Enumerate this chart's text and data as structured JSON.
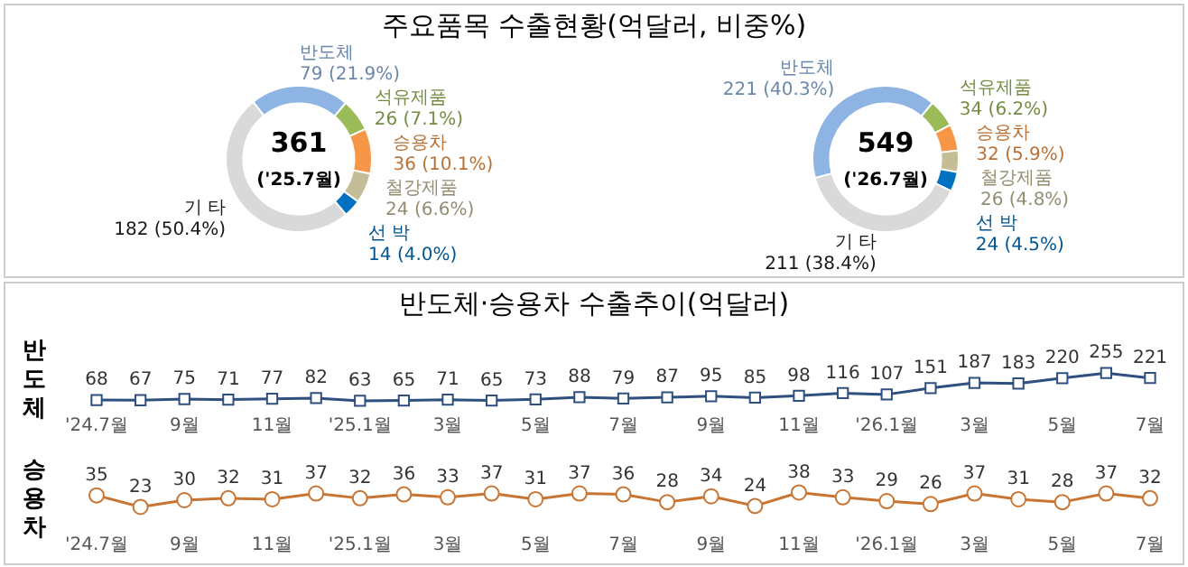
{
  "chart_data": [
    {
      "type": "donut",
      "title": "주요품목  수출현황(억달러, 비중%)",
      "categories": [
        "반도체",
        "석유제품",
        "승용차",
        "철강제품",
        "선 박",
        "기 타"
      ],
      "values": [
        79,
        26,
        36,
        24,
        14,
        182
      ],
      "colors": [
        "#8db4e2",
        "#9bbb59",
        "#f79646",
        "#c4bd97",
        "#0070c0",
        "#d9d9d9"
      ],
      "value_labels": [
        "79 (21.9%)",
        "26 (7.1%)",
        "36 (10.1%)",
        "24 (6.6%)",
        "14 (4.0%)",
        "182 (50.4%)"
      ],
      "annotations": [
        "361",
        "('25.7월)"
      ]
    },
    {
      "type": "donut",
      "categories": [
        "반도체",
        "석유제품",
        "승용차",
        "철강제품",
        "선 박",
        "기 타"
      ],
      "values": [
        221,
        34,
        32,
        26,
        24,
        211
      ],
      "colors": [
        "#8db4e2",
        "#9bbb59",
        "#f79646",
        "#c4bd97",
        "#0070c0",
        "#d9d9d9"
      ],
      "value_labels": [
        "221 (40.3%)",
        "34 (6.2%)",
        "32 (5.9%)",
        "26 (4.8%)",
        "24 (4.5%)",
        "211 (38.4%)"
      ],
      "annotations": [
        "549",
        "('26.7월)"
      ]
    },
    {
      "type": "line",
      "title": "반도체·승용차 수출추이(억달러)",
      "ylabel": "반도체",
      "categories": [
        "'24.7월",
        null,
        "9월",
        null,
        "11월",
        null,
        "'25.1월",
        null,
        "3월",
        null,
        "5월",
        null,
        "7월",
        null,
        "9월",
        null,
        "11월",
        null,
        "'26.1월",
        null,
        "3월",
        null,
        "5월",
        null,
        "7월"
      ],
      "series": [
        {
          "color": "#2f4f7f",
          "values": [
            68,
            67,
            75,
            71,
            77,
            82,
            63,
            65,
            71,
            65,
            73,
            88,
            79,
            87,
            95,
            85,
            98,
            116,
            107,
            151,
            187,
            183,
            220,
            255,
            221
          ]
        }
      ],
      "marker": "square",
      "data_labels": true,
      "tick_labels": "x",
      "legend": false
    },
    {
      "type": "line",
      "ylabel": "승용차",
      "categories": [
        "'24.7월",
        null,
        "9월",
        null,
        "11월",
        null,
        "'25.1월",
        null,
        "3월",
        null,
        "5월",
        null,
        "7월",
        null,
        "9월",
        null,
        "11월",
        null,
        "'26.1월",
        null,
        "3월",
        null,
        "5월",
        null,
        "7월"
      ],
      "series": [
        {
          "color": "#c87533",
          "values": [
            35,
            23,
            30,
            32,
            31,
            37,
            32,
            36,
            33,
            37,
            31,
            37,
            36,
            28,
            34,
            24,
            38,
            33,
            29,
            26,
            37,
            31,
            28,
            37,
            32
          ]
        }
      ],
      "marker": "circle",
      "data_labels": true,
      "tick_labels": "x",
      "legend": false
    }
  ]
}
